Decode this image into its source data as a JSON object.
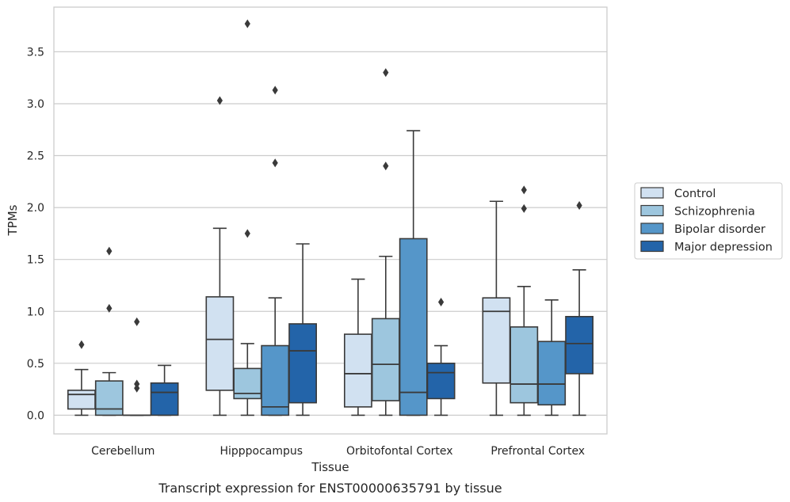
{
  "chart_data": {
    "type": "box",
    "title": "",
    "caption": "Transcript expression for ENST00000635791 by tissue",
    "xlabel": "Tissue",
    "ylabel": "TPMs",
    "ylim": [
      -0.18,
      3.93
    ],
    "yticks": [
      "0.0",
      "0.5",
      "1.0",
      "1.5",
      "2.0",
      "2.5",
      "3.0",
      "3.5"
    ],
    "grid": "horizontal",
    "legend_position": "right",
    "categories": [
      "Cerebellum",
      "Hipppocampus",
      "Orbitofontal Cortex",
      "Prefrontal Cortex"
    ],
    "series": [
      {
        "name": "Control",
        "color": "#d1e1f1",
        "boxes": [
          {
            "min": 0.0,
            "q1": 0.06,
            "median": 0.2,
            "q3": 0.24,
            "max": 0.44,
            "outliers": [
              0.68
            ]
          },
          {
            "min": 0.0,
            "q1": 0.24,
            "median": 0.73,
            "q3": 1.14,
            "max": 1.8,
            "outliers": [
              3.03
            ]
          },
          {
            "min": 0.0,
            "q1": 0.08,
            "median": 0.4,
            "q3": 0.78,
            "max": 1.31,
            "outliers": []
          },
          {
            "min": 0.0,
            "q1": 0.31,
            "median": 1.0,
            "q3": 1.13,
            "max": 2.06,
            "outliers": []
          }
        ]
      },
      {
        "name": "Schizophrenia",
        "color": "#9dc6de",
        "boxes": [
          {
            "min": 0.0,
            "q1": 0.0,
            "median": 0.06,
            "q3": 0.33,
            "max": 0.41,
            "outliers": [
              1.03,
              1.58
            ]
          },
          {
            "min": 0.0,
            "q1": 0.16,
            "median": 0.21,
            "q3": 0.45,
            "max": 0.69,
            "outliers": [
              1.75,
              3.77
            ]
          },
          {
            "min": 0.0,
            "q1": 0.14,
            "median": 0.49,
            "q3": 0.93,
            "max": 1.53,
            "outliers": [
              2.4,
              3.3
            ]
          },
          {
            "min": 0.0,
            "q1": 0.12,
            "median": 0.3,
            "q3": 0.85,
            "max": 1.24,
            "outliers": [
              1.99,
              2.17
            ]
          }
        ]
      },
      {
        "name": "Bipolar disorder",
        "color": "#5596c9",
        "boxes": [
          {
            "min": 0.0,
            "q1": 0.0,
            "median": 0.0,
            "q3": 0.0,
            "max": 0.0,
            "outliers": [
              0.26,
              0.3,
              0.9
            ]
          },
          {
            "min": 0.0,
            "q1": 0.0,
            "median": 0.08,
            "q3": 0.67,
            "max": 1.13,
            "outliers": [
              2.43,
              3.13
            ]
          },
          {
            "min": 0.0,
            "q1": 0.0,
            "median": 0.22,
            "q3": 1.7,
            "max": 2.74,
            "outliers": []
          },
          {
            "min": 0.0,
            "q1": 0.1,
            "median": 0.3,
            "q3": 0.71,
            "max": 1.11,
            "outliers": []
          }
        ]
      },
      {
        "name": "Major depression",
        "color": "#2364a9",
        "boxes": [
          {
            "min": 0.0,
            "q1": 0.0,
            "median": 0.22,
            "q3": 0.31,
            "max": 0.48,
            "outliers": []
          },
          {
            "min": 0.0,
            "q1": 0.12,
            "median": 0.62,
            "q3": 0.88,
            "max": 1.65,
            "outliers": []
          },
          {
            "min": 0.0,
            "q1": 0.16,
            "median": 0.41,
            "q3": 0.5,
            "max": 0.67,
            "outliers": [
              1.09
            ]
          },
          {
            "min": 0.0,
            "q1": 0.4,
            "median": 0.69,
            "q3": 0.95,
            "max": 1.4,
            "outliers": [
              2.02
            ]
          }
        ]
      }
    ]
  }
}
